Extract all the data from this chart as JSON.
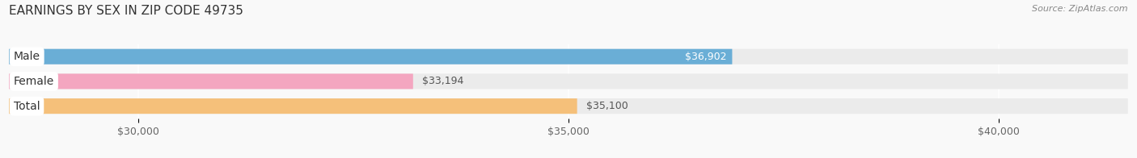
{
  "title": "EARNINGS BY SEX IN ZIP CODE 49735",
  "source": "Source: ZipAtlas.com",
  "categories": [
    "Male",
    "Female",
    "Total"
  ],
  "values": [
    36902,
    33194,
    35100
  ],
  "bar_colors": [
    "#6aaed6",
    "#f4a6c0",
    "#f5c07a"
  ],
  "bar_bg_color": "#ebebeb",
  "fig_bg_color": "#f9f9f9",
  "x_min": 28500,
  "x_max": 41500,
  "x_ticks": [
    30000,
    35000,
    40000
  ],
  "x_tick_labels": [
    "$30,000",
    "$35,000",
    "$40,000"
  ],
  "value_labels": [
    "$36,902",
    "$33,194",
    "$35,100"
  ],
  "male_label_inside": true,
  "title_fontsize": 11,
  "tick_fontsize": 9,
  "bar_label_fontsize": 9,
  "cat_fontsize": 10,
  "figsize": [
    14.06,
    1.96
  ],
  "dpi": 100
}
